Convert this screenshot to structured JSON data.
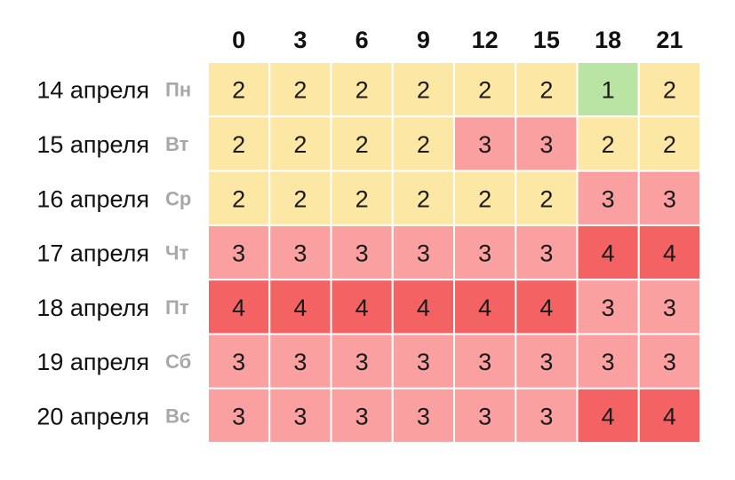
{
  "chart_data": {
    "type": "heatmap",
    "columns": [
      "0",
      "3",
      "6",
      "9",
      "12",
      "15",
      "18",
      "21"
    ],
    "rows": [
      {
        "date": "14 апреля",
        "day": "Пн",
        "values": [
          2,
          2,
          2,
          2,
          2,
          2,
          1,
          2
        ]
      },
      {
        "date": "15 апреля",
        "day": "Вт",
        "values": [
          2,
          2,
          2,
          2,
          3,
          3,
          2,
          2
        ]
      },
      {
        "date": "16 апреля",
        "day": "Ср",
        "values": [
          2,
          2,
          2,
          2,
          2,
          2,
          3,
          3
        ]
      },
      {
        "date": "17 апреля",
        "day": "Чт",
        "values": [
          3,
          3,
          3,
          3,
          3,
          3,
          4,
          4
        ]
      },
      {
        "date": "18 апреля",
        "day": "Пт",
        "values": [
          4,
          4,
          4,
          4,
          4,
          4,
          3,
          3
        ]
      },
      {
        "date": "19 апреля",
        "day": "Сб",
        "values": [
          3,
          3,
          3,
          3,
          3,
          3,
          3,
          3
        ]
      },
      {
        "date": "20 апреля",
        "day": "Вс",
        "values": [
          3,
          3,
          3,
          3,
          3,
          3,
          4,
          4
        ]
      }
    ],
    "value_colors": {
      "1": "#b9e4a3",
      "2": "#fde7a4",
      "3": "#fba0a0",
      "4": "#f46363"
    }
  }
}
